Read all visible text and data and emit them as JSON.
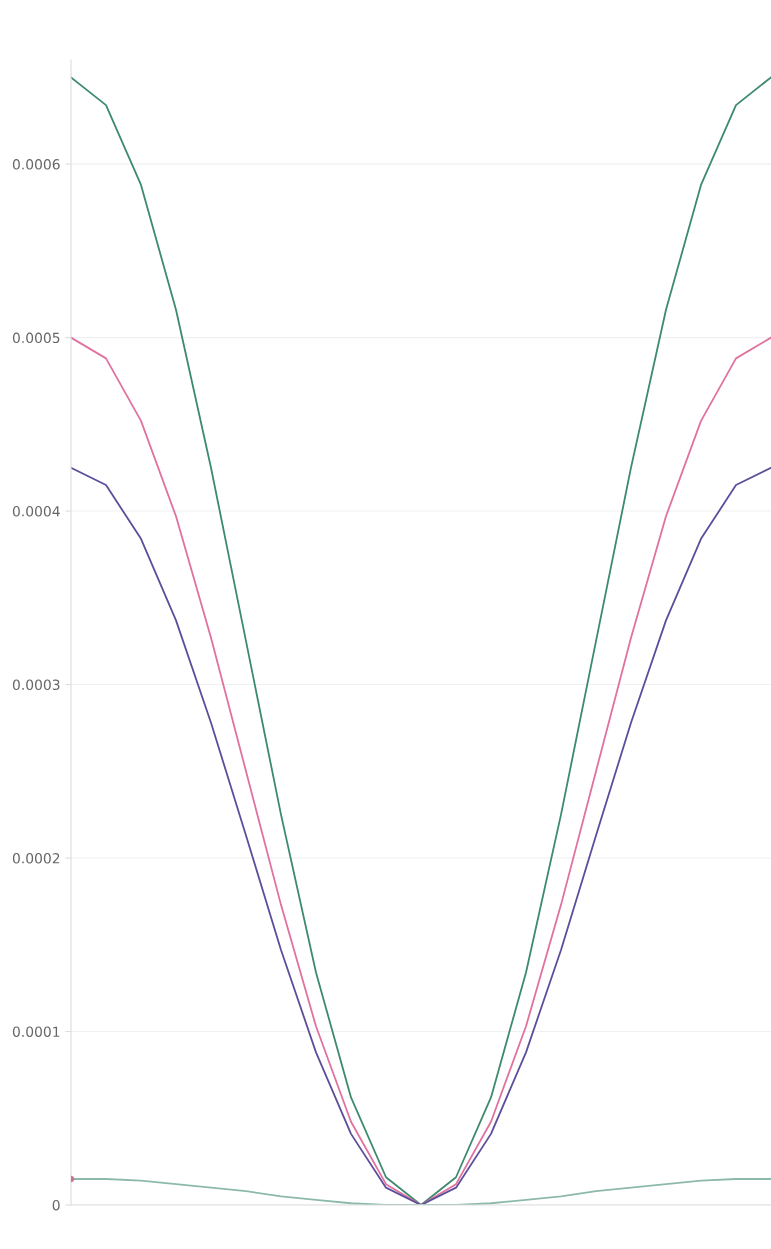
{
  "chart_data": {
    "type": "line",
    "categories": [
      null,
      null,
      null,
      null,
      null,
      null,
      null,
      null,
      null,
      null,
      null,
      null,
      null,
      null,
      null,
      null,
      null,
      null,
      null,
      null,
      null
    ],
    "series": [
      {
        "color": "#3d8a6e",
        "values": [
          0.00065,
          0.000634,
          0.000588,
          0.000516,
          0.000425,
          0.000325,
          0.000225,
          0.000134,
          6.2e-05,
          1.6e-05,
          0,
          1.6e-05,
          6.2e-05,
          0.000134,
          0.000225,
          0.000325,
          0.000425,
          0.000516,
          0.000588,
          0.000634,
          0.00065
        ]
      },
      {
        "color": "#e0729f",
        "values": [
          0.0005,
          0.000488,
          0.000452,
          0.000397,
          0.000327,
          0.00025,
          0.000173,
          0.000103,
          4.8e-05,
          1.2e-05,
          0,
          1.2e-05,
          4.8e-05,
          0.000103,
          0.000173,
          0.00025,
          0.000327,
          0.000397,
          0.000452,
          0.000488,
          0.0005
        ]
      },
      {
        "color": "#5b4f9c",
        "values": [
          0.000425,
          0.000415,
          0.000384,
          0.000337,
          0.000278,
          0.000213,
          0.000147,
          8.8e-05,
          4.1e-05,
          1e-05,
          0,
          1e-05,
          4.1e-05,
          8.8e-05,
          0.000147,
          0.000213,
          0.000278,
          0.000337,
          0.000384,
          0.000415,
          0.000425
        ]
      },
      {
        "color": "#8dbaa8",
        "values": [
          1.5e-05,
          1.5e-05,
          1.4e-05,
          1.2e-05,
          1e-05,
          8e-06,
          5e-06,
          3e-06,
          1e-06,
          0,
          0,
          0,
          1e-06,
          3e-06,
          5e-06,
          8e-06,
          1e-05,
          1.2e-05,
          1.4e-05,
          1.5e-05,
          1.5e-05
        ]
      },
      {
        "type": "scatter",
        "color": "#d0708f",
        "values": [
          1.5e-05,
          null,
          null,
          null,
          null,
          null,
          null,
          null,
          null,
          null,
          null,
          null,
          null,
          null,
          null,
          null,
          null,
          null,
          null,
          null,
          null
        ]
      }
    ],
    "ylim": [
      0,
      0.00066
    ],
    "yticks": [
      0,
      0.0001,
      0.0002,
      0.0003,
      0.0004,
      0.0005,
      0.0006
    ],
    "grid": "y",
    "tick_labels": "y"
  }
}
